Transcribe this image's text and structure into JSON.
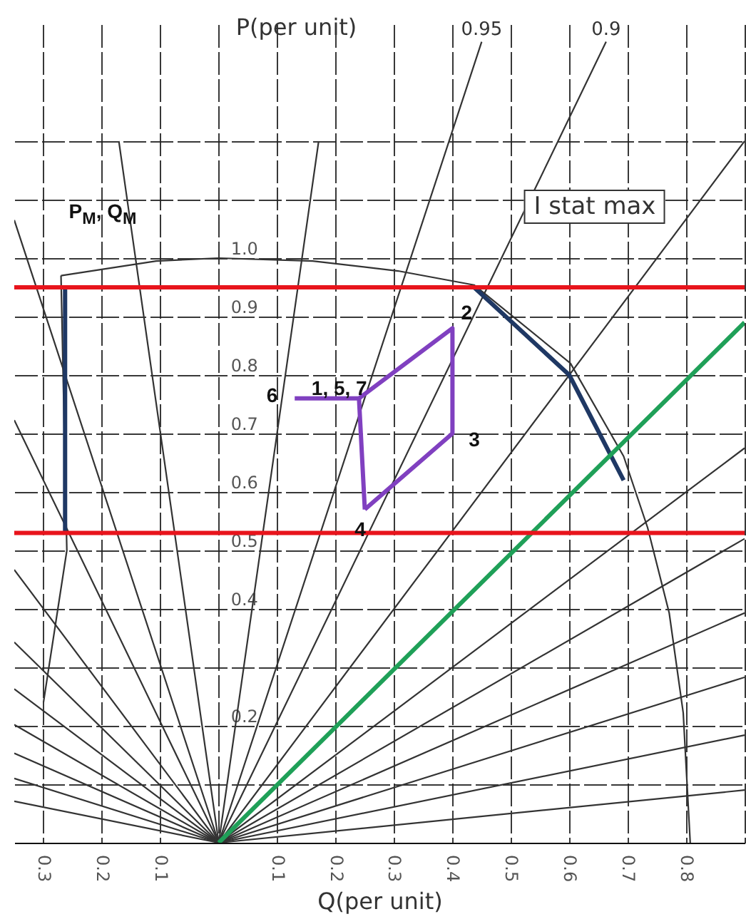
{
  "chart_data": {
    "type": "line",
    "xlabel": "Q(per unit)",
    "ylabel": "P(per unit)",
    "xlim": [
      -0.35,
      0.9
    ],
    "ylim": [
      0,
      1.4
    ],
    "xticks": [
      {
        "value": -0.3,
        "label": "0.3"
      },
      {
        "value": -0.2,
        "label": "0.2"
      },
      {
        "value": -0.1,
        "label": "0.1"
      },
      {
        "value": 0,
        "label": null
      },
      0.1,
      0.2,
      0.3,
      0.4,
      0.5,
      0.6,
      0.7,
      0.8,
      {
        "value": 0.9,
        "label": null
      }
    ],
    "yticks": [
      {
        "value": 0,
        "label": null
      },
      {
        "value": 0.1,
        "label": null
      },
      0.2,
      {
        "value": 0.3,
        "label": null
      },
      0.4,
      0.5,
      0.6,
      0.7,
      0.8,
      0.9,
      {
        "value": 1,
        "label": "1.0"
      },
      {
        "value": 1.1,
        "label": null
      },
      {
        "value": 1.2,
        "label": null
      }
    ],
    "grid": true,
    "marker": "none",
    "line_style": "solid",
    "series": [
      {
        "color": "#333333",
        "x": [
          -0.171,
          0,
          0.171
        ],
        "values": [
          1.2,
          0,
          1.2
        ]
      },
      {
        "name": "0.95",
        "color": "#333333",
        "x": [
          -0.35,
          0,
          0.45
        ],
        "values": [
          1.065,
          0,
          1.37
        ]
      },
      {
        "name": "0.9",
        "color": "#333333",
        "x": [
          -0.35,
          0,
          0.663
        ],
        "values": [
          0.723,
          0,
          1.37
        ]
      },
      {
        "color": "#333333",
        "x": [
          -0.35,
          0,
          0.9
        ],
        "values": [
          0.467,
          0,
          1.2
        ]
      },
      {
        "color": "#333333",
        "x": [
          -0.35,
          0
        ],
        "values": [
          0.343,
          0
        ]
      },
      {
        "color": "#333333",
        "x": [
          -0.35,
          0,
          0.9
        ],
        "values": [
          0.263,
          0,
          0.675
        ]
      },
      {
        "color": "#333333",
        "x": [
          -0.35,
          0,
          0.9
        ],
        "values": [
          0.202,
          0,
          0.52
        ]
      },
      {
        "color": "#333333",
        "x": [
          -0.35,
          0,
          0.9
        ],
        "values": [
          0.153,
          0,
          0.393
        ]
      },
      {
        "color": "#333333",
        "x": [
          -0.35,
          0,
          0.9
        ],
        "values": [
          0.11,
          0,
          0.283
        ]
      },
      {
        "color": "#333333",
        "x": [
          -0.35,
          0,
          0.9
        ],
        "values": [
          0.071,
          0,
          0.184
        ]
      },
      {
        "color": "#333333",
        "x": [
          0,
          0.9
        ],
        "values": [
          0,
          0.09
        ]
      },
      {
        "color": "#333333",
        "x": [
          -0.27,
          -0.107,
          0,
          0.161,
          0.307,
          0.437,
          0.602,
          0.693,
          0.734,
          0.771,
          0.795,
          0.807
        ],
        "values": [
          0.97,
          0.995,
          1.0,
          0.995,
          0.978,
          0.954,
          0.82,
          0.661,
          0.539,
          0.393,
          0.222,
          0
        ]
      },
      {
        "color": "#333333",
        "x": [
          -0.27,
          -0.26,
          -0.3
        ],
        "values": [
          0.97,
          0.5,
          0.24
        ]
      },
      {
        "color": "#1f3864",
        "x": [
          -0.263,
          -0.263
        ],
        "values": [
          0.95,
          0.53
        ]
      },
      {
        "color": "#1f3864",
        "x": [
          0.437,
          0.6,
          0.693
        ],
        "values": [
          0.95,
          0.8,
          0.62
        ]
      },
      {
        "color": "#1fa058",
        "x": [
          0,
          0.9
        ],
        "values": [
          0,
          0.89
        ]
      },
      {
        "color": "#8040c0",
        "x": [
          0.24,
          0.4,
          0.4,
          0.25
        ],
        "values": [
          0.76,
          0.88,
          0.7,
          0.57
        ]
      },
      {
        "color": "#8040c0",
        "x": [
          0.25,
          0.24,
          0.13
        ],
        "values": [
          0.57,
          0.76,
          0.76
        ]
      }
    ],
    "ref_lines": [
      {
        "axis": "y",
        "value": 0.95,
        "color": "#e8141c"
      },
      {
        "axis": "y",
        "value": 0.53,
        "color": "#e8141c"
      }
    ],
    "annotations": [
      "P$_{M}$, Q$_{M}$",
      {
        "text": "1, 5, 7",
        "x": 0.24,
        "y": 0.76
      },
      {
        "text": "2",
        "x": 0.4,
        "y": 0.88
      },
      {
        "text": "3",
        "x": 0.4,
        "y": 0.7
      },
      {
        "text": "4",
        "x": 0.25,
        "y": 0.57
      },
      {
        "text": "6",
        "x": 0.13,
        "y": 0.76
      },
      "I stat max"
    ]
  }
}
